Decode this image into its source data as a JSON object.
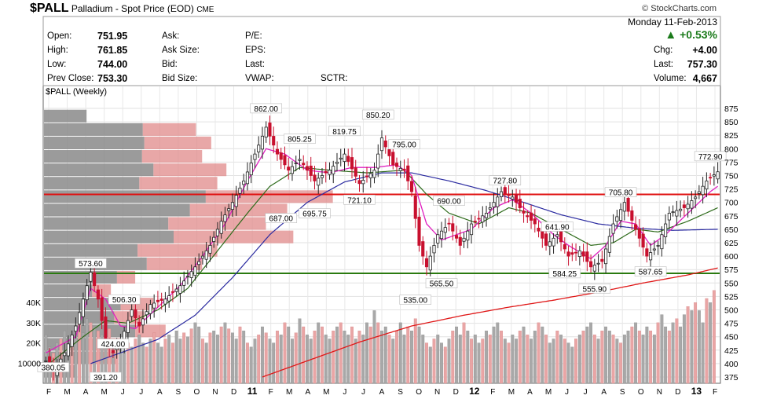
{
  "header": {
    "symbol": "$PALL",
    "name": "Palladium - Spot Price (EOD)",
    "exchange": "CME",
    "copyright": "© StockCharts.com",
    "date": "Monday  11-Feb-2013",
    "change_pct": "+0.53%",
    "chg_label": "Chg:",
    "chg_value": "+4.00",
    "last_label": "Last:",
    "last_value": "757.30",
    "volume_label": "Volume:",
    "volume_value": "4,667",
    "open_label": "Open:",
    "open_value": "751.95",
    "high_label": "High:",
    "high_value": "761.85",
    "low_label": "Low:",
    "low_value": "744.00",
    "prev_label": "Prev Close:",
    "prev_value": "753.30",
    "ask_label": "Ask:",
    "asksize_label": "Ask Size:",
    "bid_label": "Bid:",
    "bidsize_label": "Bid Size:",
    "pe_label": "P/E:",
    "eps_label": "EPS:",
    "lastr_label": "Last:",
    "vwap_label": "VWAP:",
    "sctr_label": "SCTR:",
    "up_color": "#1a7a1a"
  },
  "chart_data": {
    "type": "line",
    "chart_label": "$PALL (Weekly)",
    "price_axis": [
      875,
      850,
      825,
      800,
      775,
      750,
      725,
      700,
      675,
      650,
      625,
      600,
      575,
      550,
      525,
      500,
      475,
      450,
      425,
      400,
      375
    ],
    "volume_axis": [
      "40K",
      "30K",
      "20K",
      "10000"
    ],
    "x_labels": [
      "F",
      "M",
      "A",
      "M",
      "J",
      "J",
      "A",
      "S",
      "O",
      "N",
      "D",
      "11",
      "F",
      "M",
      "A",
      "M",
      "J",
      "J",
      "A",
      "S",
      "O",
      "N",
      "D",
      "12",
      "F",
      "M",
      "A",
      "M",
      "J",
      "J",
      "A",
      "S",
      "O",
      "N",
      "D",
      "13",
      "F"
    ],
    "bold_labels": [
      "11",
      "12",
      "13"
    ],
    "horizontal_lines": [
      {
        "value": 715,
        "color": "#e01010"
      },
      {
        "value": 568,
        "color": "#2a7a10"
      }
    ],
    "annotations": [
      {
        "text": "862.00",
        "week": 59
      },
      {
        "text": "805.25",
        "week": 68
      },
      {
        "text": "819.75",
        "week": 80
      },
      {
        "text": "850.20",
        "week": 89
      },
      {
        "text": "795.00",
        "week": 96
      },
      {
        "text": "721.10",
        "week": 84
      },
      {
        "text": "695.75",
        "week": 72
      },
      {
        "text": "687.00",
        "week": 63
      },
      {
        "text": "727.80",
        "week": 123
      },
      {
        "text": "690.00",
        "week": 108
      },
      {
        "text": "641.90",
        "week": 137
      },
      {
        "text": "705.80",
        "week": 154
      },
      {
        "text": "772.90",
        "week": 178
      },
      {
        "text": "573.60",
        "week": 12
      },
      {
        "text": "506.30",
        "week": 21
      },
      {
        "text": "424.00",
        "week": 18
      },
      {
        "text": "391.20",
        "week": 16
      },
      {
        "text": "380.05",
        "week": 2
      },
      {
        "text": "535.00",
        "week": 99
      },
      {
        "text": "565.50",
        "week": 106
      },
      {
        "text": "584.25",
        "week": 139
      },
      {
        "text": "555.90",
        "week": 147
      },
      {
        "text": "587.65",
        "week": 162
      }
    ],
    "volume_profile": [
      {
        "price": 860,
        "total": 14,
        "up_frac": 0.0
      },
      {
        "price": 835,
        "total": 50,
        "up_frac": 0.35
      },
      {
        "price": 810,
        "total": 55,
        "up_frac": 0.4
      },
      {
        "price": 785,
        "total": 52,
        "up_frac": 0.38
      },
      {
        "price": 760,
        "total": 60,
        "up_frac": 0.4
      },
      {
        "price": 735,
        "total": 57,
        "up_frac": 0.45
      },
      {
        "price": 710,
        "total": 95,
        "up_frac": 0.44
      },
      {
        "price": 685,
        "total": 80,
        "up_frac": 0.4
      },
      {
        "price": 660,
        "total": 73,
        "up_frac": 0.44
      },
      {
        "price": 635,
        "total": 82,
        "up_frac": 0.48
      },
      {
        "price": 610,
        "total": 57,
        "up_frac": 0.46
      },
      {
        "price": 585,
        "total": 52,
        "up_frac": 0.35
      },
      {
        "price": 560,
        "total": 30,
        "up_frac": 0.2
      },
      {
        "price": 535,
        "total": 22,
        "up_frac": 0.28
      },
      {
        "price": 510,
        "total": 36,
        "up_frac": 0.3
      },
      {
        "price": 485,
        "total": 33,
        "up_frac": 0.3
      },
      {
        "price": 460,
        "total": 40,
        "up_frac": 0.25
      },
      {
        "price": 435,
        "total": 25,
        "up_frac": 0.42
      },
      {
        "price": 410,
        "total": 24,
        "up_frac": 0.42
      },
      {
        "price": 385,
        "total": 10,
        "up_frac": 0.0
      }
    ],
    "price_keypoints": [
      [
        0,
        405
      ],
      [
        2,
        385
      ],
      [
        5,
        420
      ],
      [
        8,
        470
      ],
      [
        10,
        520
      ],
      [
        12,
        570
      ],
      [
        14,
        520
      ],
      [
        16,
        440
      ],
      [
        18,
        420
      ],
      [
        20,
        440
      ],
      [
        23,
        500
      ],
      [
        25,
        470
      ],
      [
        28,
        510
      ],
      [
        32,
        520
      ],
      [
        36,
        545
      ],
      [
        40,
        580
      ],
      [
        44,
        620
      ],
      [
        47,
        665
      ],
      [
        50,
        700
      ],
      [
        53,
        740
      ],
      [
        56,
        790
      ],
      [
        59,
        840
      ],
      [
        62,
        790
      ],
      [
        65,
        760
      ],
      [
        68,
        780
      ],
      [
        72,
        740
      ],
      [
        76,
        760
      ],
      [
        80,
        790
      ],
      [
        84,
        735
      ],
      [
        88,
        760
      ],
      [
        90,
        820
      ],
      [
        93,
        770
      ],
      [
        96,
        760
      ],
      [
        98,
        720
      ],
      [
        100,
        620
      ],
      [
        102,
        580
      ],
      [
        105,
        640
      ],
      [
        108,
        660
      ],
      [
        111,
        620
      ],
      [
        114,
        660
      ],
      [
        118,
        680
      ],
      [
        122,
        720
      ],
      [
        125,
        710
      ],
      [
        128,
        680
      ],
      [
        131,
        660
      ],
      [
        134,
        620
      ],
      [
        137,
        640
      ],
      [
        140,
        600
      ],
      [
        143,
        610
      ],
      [
        146,
        580
      ],
      [
        149,
        590
      ],
      [
        152,
        660
      ],
      [
        155,
        700
      ],
      [
        158,
        650
      ],
      [
        161,
        600
      ],
      [
        164,
        620
      ],
      [
        167,
        680
      ],
      [
        171,
        690
      ],
      [
        174,
        710
      ],
      [
        177,
        740
      ],
      [
        180,
        757
      ]
    ],
    "ma_short": [
      [
        0,
        420
      ],
      [
        8,
        450
      ],
      [
        12,
        540
      ],
      [
        16,
        520
      ],
      [
        20,
        470
      ],
      [
        24,
        465
      ],
      [
        30,
        505
      ],
      [
        36,
        545
      ],
      [
        42,
        600
      ],
      [
        48,
        660
      ],
      [
        54,
        740
      ],
      [
        59,
        800
      ],
      [
        64,
        790
      ],
      [
        70,
        760
      ],
      [
        76,
        755
      ],
      [
        82,
        765
      ],
      [
        88,
        765
      ],
      [
        94,
        770
      ],
      [
        98,
        750
      ],
      [
        102,
        660
      ],
      [
        106,
        630
      ],
      [
        110,
        640
      ],
      [
        114,
        650
      ],
      [
        120,
        690
      ],
      [
        125,
        705
      ],
      [
        130,
        680
      ],
      [
        136,
        640
      ],
      [
        140,
        620
      ],
      [
        146,
        595
      ],
      [
        150,
        620
      ],
      [
        154,
        665
      ],
      [
        158,
        660
      ],
      [
        162,
        620
      ],
      [
        166,
        640
      ],
      [
        172,
        680
      ],
      [
        178,
        720
      ],
      [
        180,
        730
      ]
    ],
    "ma_mid": [
      [
        0,
        395
      ],
      [
        10,
        450
      ],
      [
        16,
        480
      ],
      [
        22,
        475
      ],
      [
        30,
        500
      ],
      [
        38,
        540
      ],
      [
        46,
        610
      ],
      [
        54,
        680
      ],
      [
        60,
        730
      ],
      [
        68,
        765
      ],
      [
        76,
        760
      ],
      [
        86,
        755
      ],
      [
        96,
        760
      ],
      [
        102,
        715
      ],
      [
        108,
        680
      ],
      [
        116,
        660
      ],
      [
        124,
        690
      ],
      [
        130,
        680
      ],
      [
        138,
        650
      ],
      [
        146,
        620
      ],
      [
        152,
        625
      ],
      [
        158,
        650
      ],
      [
        164,
        645
      ],
      [
        172,
        665
      ],
      [
        180,
        690
      ]
    ],
    "ma_long": [
      [
        12,
        400
      ],
      [
        20,
        420
      ],
      [
        30,
        445
      ],
      [
        40,
        490
      ],
      [
        50,
        560
      ],
      [
        60,
        640
      ],
      [
        70,
        700
      ],
      [
        80,
        738
      ],
      [
        90,
        755
      ],
      [
        98,
        755
      ],
      [
        108,
        740
      ],
      [
        118,
        722
      ],
      [
        128,
        700
      ],
      [
        138,
        677
      ],
      [
        148,
        660
      ],
      [
        158,
        652
      ],
      [
        168,
        648
      ],
      [
        180,
        650
      ]
    ],
    "ma_vlong": [
      [
        58,
        375
      ],
      [
        70,
        405
      ],
      [
        84,
        440
      ],
      [
        98,
        470
      ],
      [
        112,
        490
      ],
      [
        124,
        505
      ],
      [
        136,
        518
      ],
      [
        148,
        533
      ],
      [
        160,
        550
      ],
      [
        172,
        565
      ],
      [
        180,
        578
      ]
    ],
    "volume_bars_k": [
      24,
      18,
      15,
      20,
      22,
      26,
      24,
      22,
      28,
      30,
      25,
      32,
      30,
      28,
      26,
      24,
      30,
      27,
      22,
      20,
      18,
      16,
      20,
      18,
      22,
      24,
      20,
      18,
      22,
      25,
      20,
      18,
      22,
      24,
      20,
      26,
      22,
      25,
      23,
      27,
      30,
      28,
      22,
      20,
      25,
      26,
      24,
      28,
      30,
      27,
      25,
      22,
      28,
      26,
      20,
      18,
      22,
      24,
      28,
      25,
      22,
      20,
      26,
      24,
      30,
      28,
      22,
      25,
      32,
      28,
      24,
      22,
      26,
      30,
      28,
      24,
      22,
      26,
      28,
      30,
      26,
      24,
      28,
      22,
      26,
      24,
      30,
      28,
      36,
      30,
      26,
      28,
      24,
      22,
      26,
      30,
      24,
      28,
      26,
      32,
      28,
      24,
      20,
      18,
      22,
      24,
      20,
      18,
      22,
      26,
      28,
      24,
      30,
      26,
      22,
      24,
      20,
      22,
      26,
      24,
      28,
      30,
      26,
      22,
      20,
      24,
      22,
      26,
      28,
      24,
      22,
      26,
      30,
      28,
      24,
      20,
      22,
      26,
      24,
      22,
      20,
      18,
      22,
      24,
      26,
      28,
      30,
      24,
      22,
      26,
      28,
      26,
      24,
      22,
      20,
      24,
      26,
      28,
      30,
      26,
      24,
      28,
      26,
      24,
      30,
      34,
      28,
      26,
      30,
      32,
      28,
      34,
      38,
      36,
      40,
      36,
      30,
      42,
      40,
      46
    ]
  }
}
